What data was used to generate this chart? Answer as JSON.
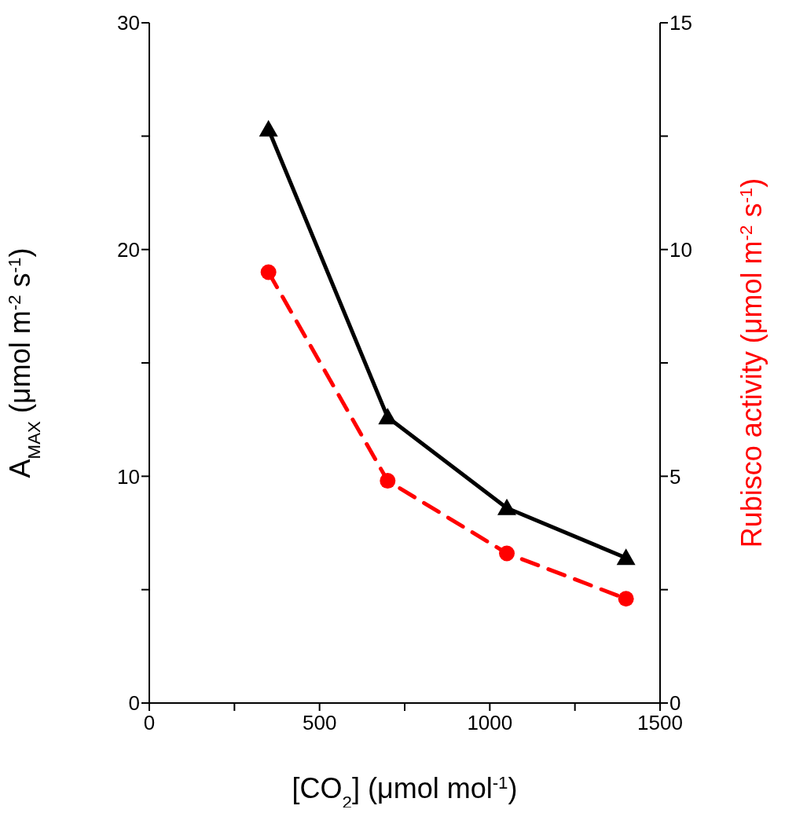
{
  "chart_data": {
    "type": "line",
    "xlabel": "[CO$_{2}$] (μmol mol$^{-1}$)",
    "ylabel": "A$_{MAX}$ (μmol m$^{-2}$ s$^{-1}$)",
    "y2label": "Rubisco activity (μmol m$^{-2}$ s$^{-1}$)",
    "x": [
      350,
      700,
      1050,
      1400
    ],
    "series": [
      {
        "color": "#000000",
        "values": [
          25.3,
          12.6,
          8.6,
          6.4
        ],
        "marker": "triangle",
        "line_style": "solid"
      },
      {
        "color": "#ff0000",
        "values": [
          9.5,
          4.9,
          3.3,
          2.3
        ],
        "marker": "circle",
        "line_style": "dashed",
        "axis": "y2"
      }
    ],
    "xlim": [
      0,
      1500
    ],
    "xticks": [
      0,
      {
        "value": 250,
        "label": null
      },
      500,
      {
        "value": 750,
        "label": null
      },
      1000,
      {
        "value": 1250,
        "label": null
      },
      1500
    ],
    "ylim": [
      0,
      30
    ],
    "yticks": [
      0,
      {
        "value": 5,
        "label": null
      },
      10,
      {
        "value": 15,
        "label": null
      },
      20,
      {
        "value": 25,
        "label": null
      },
      30
    ],
    "y2lim": [
      0,
      15
    ],
    "y2ticks": [
      0,
      {
        "value": 2.5,
        "label": null
      },
      5,
      {
        "value": 7.5,
        "label": null
      },
      10,
      {
        "value": 12.5,
        "label": null
      },
      15
    ],
    "grid": false,
    "legend": false
  }
}
